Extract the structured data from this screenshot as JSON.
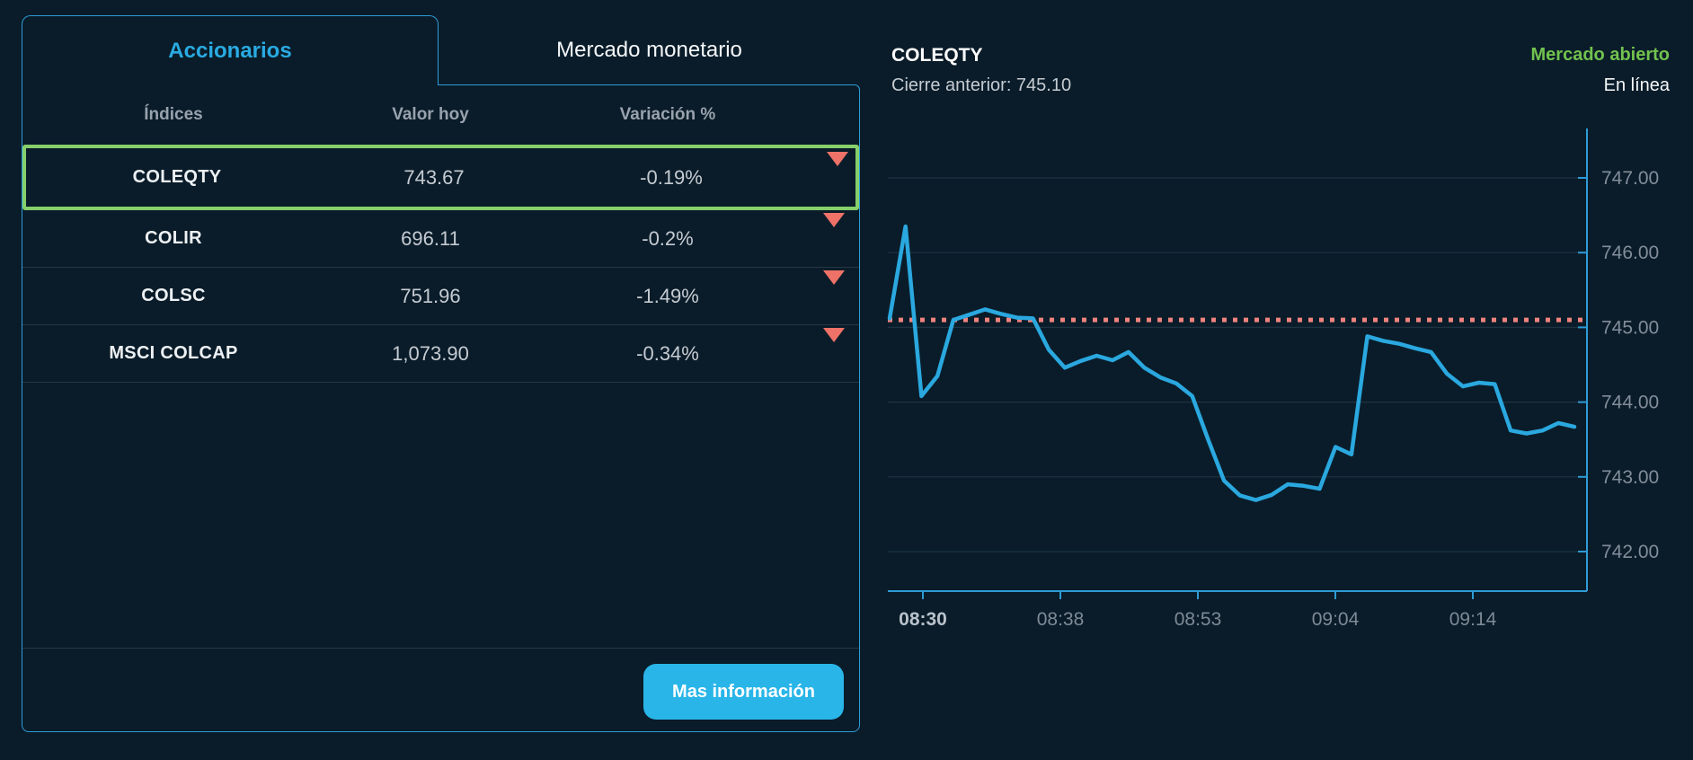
{
  "colors": {
    "accent": "#29ABE2",
    "panel_border": "#2D9CDB",
    "selected_row_border": "#86CF6B",
    "negative_red": "#EE7268",
    "market_open_green": "#72C24E",
    "chart_line": "#2AA8DF",
    "previous_close_dash": "#F0837E"
  },
  "tabs": {
    "accionarios": "Accionarios",
    "mercado_monetario": "Mercado monetario"
  },
  "table": {
    "headers": {
      "indices": "Índices",
      "valor_hoy": "Valor hoy",
      "variacion": "Variación %"
    },
    "rows": [
      {
        "name": "COLEQTY",
        "value": "743.67",
        "variation": "-0.19%",
        "direction": "down",
        "selected": true
      },
      {
        "name": "COLIR",
        "value": "696.11",
        "variation": "-0.2%",
        "direction": "down",
        "selected": false
      },
      {
        "name": "COLSC",
        "value": "751.96",
        "variation": "-1.49%",
        "direction": "down",
        "selected": false
      },
      {
        "name": "MSCI COLCAP",
        "value": "1,073.90",
        "variation": "-0.34%",
        "direction": "down",
        "selected": false
      }
    ]
  },
  "footer": {
    "more_info_label": "Mas información"
  },
  "detail": {
    "title": "COLEQTY",
    "previous_close_text": "Cierre anterior: 745.10",
    "market_status": "Mercado abierto",
    "connection_status": "En línea"
  },
  "chart_data": {
    "type": "line",
    "title": "",
    "xlabel": "",
    "ylabel": "",
    "series_name": "COLEQTY",
    "x_tick_labels": [
      "08:30",
      "08:38",
      "08:53",
      "09:04",
      "09:14"
    ],
    "y_tick_labels": [
      "747.00",
      "746.00",
      "745.00",
      "744.00",
      "743.00",
      "742.00"
    ],
    "ylim": [
      741.5,
      747.7
    ],
    "grid": true,
    "legend": false,
    "previous_close": 745.1,
    "values": [
      745.12,
      746.35,
      744.08,
      744.35,
      745.1,
      745.17,
      745.24,
      745.18,
      745.13,
      745.12,
      744.7,
      744.46,
      744.55,
      744.62,
      744.56,
      744.67,
      744.46,
      744.33,
      744.25,
      744.08,
      743.5,
      742.95,
      742.75,
      742.69,
      742.76,
      742.9,
      742.88,
      742.84,
      743.4,
      743.3,
      744.88,
      744.82,
      744.78,
      744.72,
      744.67,
      744.38,
      744.21,
      744.26,
      744.24,
      743.62,
      743.58,
      743.62,
      743.72,
      743.67
    ]
  }
}
